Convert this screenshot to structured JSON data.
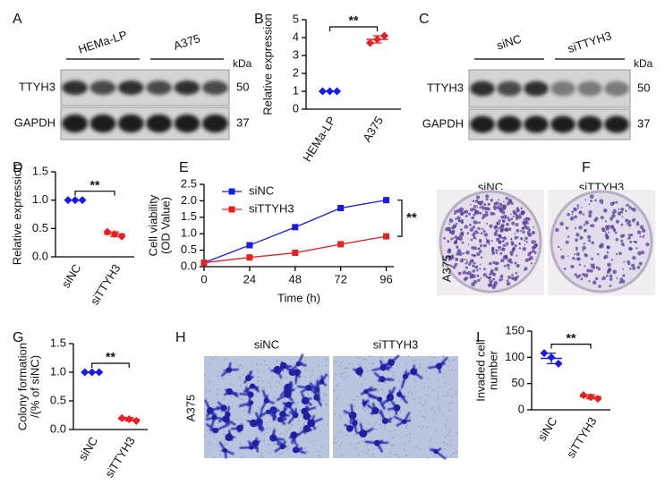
{
  "panel_letters": [
    "A",
    "B",
    "C",
    "D",
    "E",
    "F",
    "G",
    "H",
    "I"
  ],
  "blot_A": {
    "groups": [
      "HEMa-LP",
      "A375"
    ],
    "unit": "kDa",
    "rows": [
      {
        "name": "TTYH3",
        "size": 50
      },
      {
        "name": "GAPDH",
        "size": 37
      }
    ]
  },
  "blot_C": {
    "groups": [
      "siNC",
      "siTTYH3"
    ],
    "unit": "kDa",
    "rows": [
      {
        "name": "TTYH3",
        "size": 50
      },
      {
        "name": "GAPDH",
        "size": 37
      }
    ]
  },
  "colony_F": {
    "groups": [
      "siNC",
      "siTTYH3"
    ],
    "row_label": "A375"
  },
  "invasion_H": {
    "groups": [
      "siNC",
      "siTTYH3"
    ],
    "row_label": "A375"
  },
  "chart_data": [
    {
      "type": "dot",
      "categories": [
        "HEMa-LP",
        "A375"
      ],
      "ylabel": [
        "Relative expression"
      ],
      "ylim": [
        0,
        5
      ],
      "yticks": [
        0,
        1,
        2,
        3,
        4,
        5
      ],
      "colors": [
        "#1a1ae6",
        "#e62020"
      ],
      "points": [
        [
          1,
          1,
          1
        ],
        [
          3.7,
          3.9,
          4.1
        ]
      ],
      "means": [
        1,
        3.9
      ],
      "errors": [
        0,
        0.2
      ],
      "annotation": "**"
    },
    {
      "type": "dot",
      "categories": [
        "siNC",
        "siTTYH3"
      ],
      "ylabel": [
        "Relative expression"
      ],
      "ylim": [
        0,
        1.5
      ],
      "yticks": [
        {
          "value": 0,
          "label": "0.0"
        },
        0.5,
        {
          "value": 1,
          "label": "1.0"
        },
        1.5
      ],
      "colors": [
        "#1a1ae6",
        "#e62020"
      ],
      "points": [
        [
          1,
          1,
          1
        ],
        [
          0.44,
          0.4,
          0.36
        ]
      ],
      "means": [
        1,
        0.4
      ],
      "errors": [
        0,
        0.04
      ],
      "annotation": "**"
    },
    {
      "type": "line",
      "ylabel": [
        "Cell viability",
        "(OD Value)"
      ],
      "xlabel": "Time (h)",
      "x": [
        0,
        24,
        48,
        72,
        96
      ],
      "xlim": [
        0,
        100
      ],
      "xticks": [
        0,
        24,
        48,
        72,
        96
      ],
      "ylim": [
        0,
        2.5
      ],
      "yticks": [
        {
          "value": 0,
          "label": "0.0"
        },
        0.5,
        {
          "value": 1,
          "label": "1.0"
        },
        1.5,
        {
          "value": 2,
          "label": "2.0"
        },
        2.5
      ],
      "legend": "upper left",
      "annotation": "**",
      "series": [
        {
          "name": "siNC",
          "color": "#1a1ae6",
          "values": [
            0.12,
            0.65,
            1.2,
            1.78,
            2.02
          ]
        },
        {
          "name": "siTTYH3",
          "color": "#e62020",
          "values": [
            0.12,
            0.28,
            0.42,
            0.68,
            0.92
          ]
        }
      ]
    },
    {
      "type": "dot",
      "categories": [
        "siNC",
        "siTTYH3"
      ],
      "ylabel": [
        "Colony formation",
        "/(% of siNC)"
      ],
      "ylim": [
        0,
        1.5
      ],
      "yticks": [
        {
          "value": 0,
          "label": "0.0"
        },
        0.5,
        {
          "value": 1,
          "label": "1.0"
        },
        1.5
      ],
      "colors": [
        "#1a1ae6",
        "#e62020"
      ],
      "points": [
        [
          1,
          1,
          1
        ],
        [
          0.2,
          0.18,
          0.15
        ]
      ],
      "means": [
        1,
        0.18
      ],
      "errors": [
        0,
        0.03
      ],
      "annotation": "**"
    },
    {
      "type": "dot",
      "categories": [
        "siNC",
        "siTTYH3"
      ],
      "ylabel": [
        "Invaded cell",
        "number"
      ],
      "ylim": [
        0,
        150
      ],
      "yticks": [
        0,
        50,
        100,
        150
      ],
      "colors": [
        "#1a1ae6",
        "#e62020"
      ],
      "points": [
        [
          108,
          100,
          88
        ],
        [
          28,
          24,
          21
        ]
      ],
      "means": [
        98,
        25
      ],
      "errors": [
        10,
        4
      ],
      "annotation": "**"
    }
  ]
}
